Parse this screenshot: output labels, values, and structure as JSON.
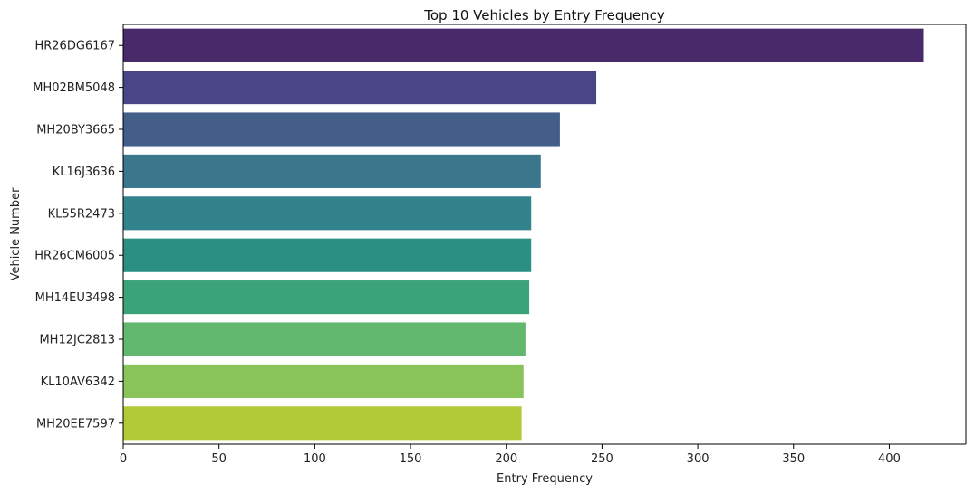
{
  "chart_data": {
    "type": "bar",
    "orientation": "horizontal",
    "title": "Top 10 Vehicles by Entry Frequency",
    "xlabel": "Entry Frequency",
    "ylabel": "Vehicle Number",
    "xlim": [
      0,
      440
    ],
    "xticks": [
      0,
      50,
      100,
      150,
      200,
      250,
      300,
      350,
      400
    ],
    "grid": false,
    "categories": [
      "HR26DG6167",
      "MH02BM5048",
      "MH20BY3665",
      "KL16J3636",
      "KL55R2473",
      "HR26CM6005",
      "MH14EU3498",
      "MH12JC2813",
      "KL10AV6342",
      "MH20EE7597"
    ],
    "values": [
      418,
      247,
      228,
      218,
      213,
      213,
      212,
      210,
      209,
      208
    ],
    "colors": [
      "#482a6a",
      "#4a4685",
      "#435e89",
      "#3a768c",
      "#32838c",
      "#2c8f84",
      "#3aa379",
      "#62b86f",
      "#89c45a",
      "#b3ca38"
    ]
  }
}
